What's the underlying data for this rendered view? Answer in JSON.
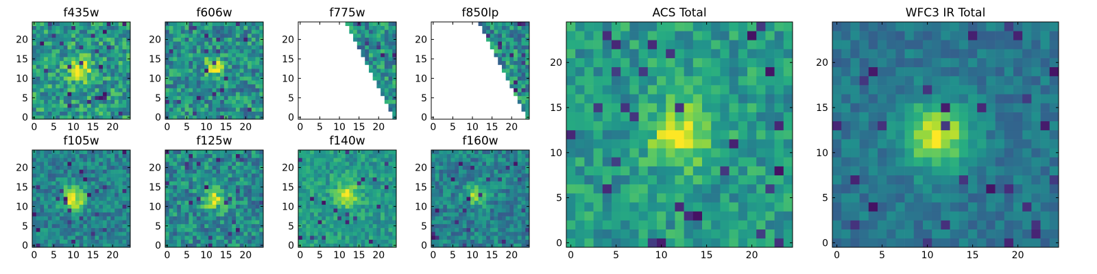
{
  "colormap": "viridis",
  "chart_data": [
    {
      "type": "heatmap",
      "title": "f435w",
      "xticks": [
        "0",
        "5",
        "10",
        "15",
        "20"
      ],
      "yticks": [
        "0",
        "5",
        "10",
        "15",
        "20"
      ],
      "xlim": [
        -0.5,
        24.5
      ],
      "ylim": [
        -0.5,
        24.5
      ],
      "grid": false,
      "blob": {
        "cx": 12,
        "cy": 12,
        "peak": 0.92,
        "sigma": 2.2
      },
      "noise": 0.22,
      "base": 0.55
    },
    {
      "type": "heatmap",
      "title": "f606w",
      "xticks": [
        "0",
        "5",
        "10",
        "15",
        "20"
      ],
      "yticks": [
        "0",
        "5",
        "10",
        "15",
        "20"
      ],
      "xlim": [
        -0.5,
        24.5
      ],
      "ylim": [
        -0.5,
        24.5
      ],
      "grid": false,
      "blob": {
        "cx": 12,
        "cy": 13,
        "peak": 0.93,
        "sigma": 1.8
      },
      "noise": 0.22,
      "base": 0.5
    },
    {
      "type": "heatmap",
      "title": "f775w",
      "xticks": [
        "0",
        "5",
        "10",
        "15",
        "20"
      ],
      "yticks": [
        "0",
        "5",
        "10",
        "15",
        "20"
      ],
      "xlim": [
        -0.5,
        24.5
      ],
      "ylim": [
        -0.5,
        24.5
      ],
      "grid": false,
      "blob": {
        "cx": 12,
        "cy": 12,
        "peak": 0.9,
        "sigma": 2.0
      },
      "noise": 0.22,
      "base": 0.5,
      "coverage_diagonal": true
    },
    {
      "type": "heatmap",
      "title": "f850lp",
      "xticks": [
        "0",
        "5",
        "10",
        "15",
        "20"
      ],
      "yticks": [
        "0",
        "5",
        "10",
        "15",
        "20"
      ],
      "xlim": [
        -0.5,
        24.5
      ],
      "ylim": [
        -0.5,
        24.5
      ],
      "grid": false,
      "blob": {
        "cx": 12,
        "cy": 12,
        "peak": 0.9,
        "sigma": 2.0
      },
      "noise": 0.22,
      "base": 0.5,
      "coverage_diagonal": true
    },
    {
      "type": "heatmap",
      "title": "f105w",
      "xticks": [
        "0",
        "5",
        "10",
        "15",
        "20"
      ],
      "yticks": [
        "0",
        "5",
        "10",
        "15",
        "20"
      ],
      "xlim": [
        -0.5,
        24.5
      ],
      "ylim": [
        -0.5,
        24.5
      ],
      "grid": false,
      "blob": {
        "cx": 10,
        "cy": 12,
        "peak": 0.95,
        "sigma": 2.3
      },
      "noise": 0.16,
      "base": 0.45
    },
    {
      "type": "heatmap",
      "title": "f125w",
      "xticks": [
        "0",
        "5",
        "10",
        "15",
        "20"
      ],
      "yticks": [
        "0",
        "5",
        "10",
        "15",
        "20"
      ],
      "xlim": [
        -0.5,
        24.5
      ],
      "ylim": [
        -0.5,
        24.5
      ],
      "grid": false,
      "blob": {
        "cx": 12,
        "cy": 12,
        "peak": 0.9,
        "sigma": 2.0
      },
      "noise": 0.2,
      "base": 0.48
    },
    {
      "type": "heatmap",
      "title": "f140w",
      "xticks": [
        "0",
        "5",
        "10",
        "15",
        "20"
      ],
      "yticks": [
        "0",
        "5",
        "10",
        "15",
        "20"
      ],
      "xlim": [
        -0.5,
        24.5
      ],
      "ylim": [
        -0.5,
        24.5
      ],
      "grid": false,
      "blob": {
        "cx": 12,
        "cy": 13,
        "peak": 0.92,
        "sigma": 2.2
      },
      "noise": 0.14,
      "base": 0.55
    },
    {
      "type": "heatmap",
      "title": "f160w",
      "xticks": [
        "0",
        "5",
        "10",
        "15",
        "20"
      ],
      "yticks": [
        "0",
        "5",
        "10",
        "15",
        "20"
      ],
      "xlim": [
        -0.5,
        24.5
      ],
      "ylim": [
        -0.5,
        24.5
      ],
      "grid": false,
      "blob": {
        "cx": 11,
        "cy": 13,
        "peak": 0.9,
        "sigma": 1.8
      },
      "noise": 0.16,
      "base": 0.45
    },
    {
      "type": "heatmap",
      "title": "ACS Total",
      "xticks": [
        "0",
        "5",
        "10",
        "15",
        "20"
      ],
      "yticks": [
        "0",
        "5",
        "10",
        "15",
        "20"
      ],
      "xlim": [
        -0.5,
        24.5
      ],
      "ylim": [
        -0.5,
        24.5
      ],
      "grid": false,
      "blob": {
        "cx": 12,
        "cy": 12,
        "peak": 0.96,
        "sigma": 2.4
      },
      "noise": 0.16,
      "base": 0.55
    },
    {
      "type": "heatmap",
      "title": "WFC3 IR Total",
      "xticks": [
        "0",
        "5",
        "10",
        "15",
        "20"
      ],
      "yticks": [
        "0",
        "5",
        "10",
        "15",
        "20"
      ],
      "xlim": [
        -0.5,
        24.5
      ],
      "ylim": [
        -0.5,
        24.5
      ],
      "grid": false,
      "blob": {
        "cx": 11,
        "cy": 12,
        "peak": 0.95,
        "sigma": 2.6
      },
      "noise": 0.1,
      "base": 0.4
    }
  ]
}
